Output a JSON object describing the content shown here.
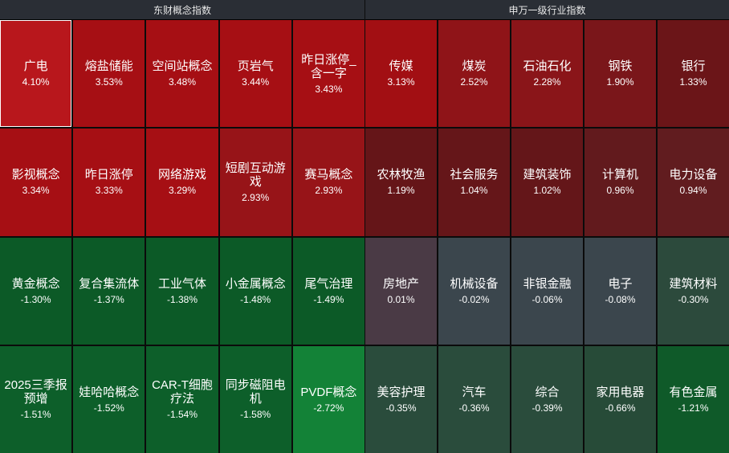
{
  "panels": [
    {
      "title": "东财概念指数",
      "tiles": [
        {
          "name": "广电",
          "pct": "4.10%",
          "color": "#b8171c",
          "selected": true
        },
        {
          "name": "熔盐储能",
          "pct": "3.53%",
          "color": "#a60f14"
        },
        {
          "name": "空间站概念",
          "pct": "3.48%",
          "color": "#a60f14"
        },
        {
          "name": "页岩气",
          "pct": "3.44%",
          "color": "#a60f14"
        },
        {
          "name": "昨日涨停_含一字",
          "pct": "3.43%",
          "color": "#a60f14"
        },
        {
          "name": "影视概念",
          "pct": "3.34%",
          "color": "#a60f14"
        },
        {
          "name": "昨日涨停",
          "pct": "3.33%",
          "color": "#a60f14"
        },
        {
          "name": "网络游戏",
          "pct": "3.29%",
          "color": "#a60f14"
        },
        {
          "name": "短剧互动游戏",
          "pct": "2.93%",
          "color": "#971418"
        },
        {
          "name": "赛马概念",
          "pct": "2.93%",
          "color": "#971418"
        },
        {
          "name": "黄金概念",
          "pct": "-1.30%",
          "color": "#0c5a27"
        },
        {
          "name": "复合集流体",
          "pct": "-1.37%",
          "color": "#0c5a27"
        },
        {
          "name": "工业气体",
          "pct": "-1.38%",
          "color": "#0c5a27"
        },
        {
          "name": "小金属概念",
          "pct": "-1.48%",
          "color": "#0c5a27"
        },
        {
          "name": "尾气治理",
          "pct": "-1.49%",
          "color": "#0c5a27"
        },
        {
          "name": "2025三季报预增",
          "pct": "-1.51%",
          "color": "#0d5f2a"
        },
        {
          "name": "娃哈哈概念",
          "pct": "-1.52%",
          "color": "#0d5f2a"
        },
        {
          "name": "CAR-T细胞疗法",
          "pct": "-1.54%",
          "color": "#0d5f2a"
        },
        {
          "name": "同步磁阻电机",
          "pct": "-1.58%",
          "color": "#0d5f2a"
        },
        {
          "name": "PVDF概念",
          "pct": "-2.72%",
          "color": "#138237"
        }
      ]
    },
    {
      "title": "申万一级行业指数",
      "tiles": [
        {
          "name": "传媒",
          "pct": "3.13%",
          "color": "#a20f13"
        },
        {
          "name": "煤炭",
          "pct": "2.52%",
          "color": "#8f1418"
        },
        {
          "name": "石油石化",
          "pct": "2.28%",
          "color": "#8a1519"
        },
        {
          "name": "钢铁",
          "pct": "1.90%",
          "color": "#7a161a"
        },
        {
          "name": "银行",
          "pct": "1.33%",
          "color": "#6b1518"
        },
        {
          "name": "农林牧渔",
          "pct": "1.19%",
          "color": "#651518"
        },
        {
          "name": "社会服务",
          "pct": "1.04%",
          "color": "#651619"
        },
        {
          "name": "建筑装饰",
          "pct": "1.02%",
          "color": "#641619"
        },
        {
          "name": "计算机",
          "pct": "0.96%",
          "color": "#621a1d"
        },
        {
          "name": "电力设备",
          "pct": "0.94%",
          "color": "#611c1f"
        },
        {
          "name": "房地产",
          "pct": "0.01%",
          "color": "#4a3a45"
        },
        {
          "name": "机械设备",
          "pct": "-0.02%",
          "color": "#3b464d"
        },
        {
          "name": "非银金融",
          "pct": "-0.06%",
          "color": "#3b464d"
        },
        {
          "name": "电子",
          "pct": "-0.08%",
          "color": "#3b464d"
        },
        {
          "name": "建筑材料",
          "pct": "-0.30%",
          "color": "#2c4a3c"
        },
        {
          "name": "美容护理",
          "pct": "-0.35%",
          "color": "#2a4c3c"
        },
        {
          "name": "汽车",
          "pct": "-0.36%",
          "color": "#2a4c3c"
        },
        {
          "name": "综合",
          "pct": "-0.39%",
          "color": "#2a4c3c"
        },
        {
          "name": "家用电器",
          "pct": "-0.66%",
          "color": "#274b38"
        },
        {
          "name": "有色金属",
          "pct": "-1.21%",
          "color": "#0f5a29"
        }
      ]
    }
  ]
}
